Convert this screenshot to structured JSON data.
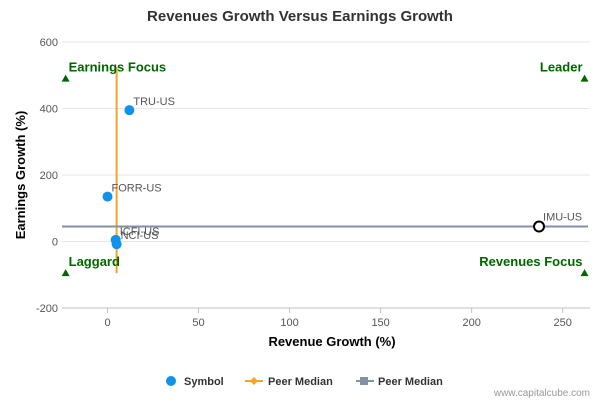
{
  "chart_data": {
    "type": "scatter",
    "title": "Revenues Growth Versus Earnings Growth",
    "xlabel": "Revenue Growth (%)",
    "ylabel": "Earnings Growth (%)",
    "xlim": [
      -25,
      265
    ],
    "ylim": [
      -200,
      600
    ],
    "x_ticks": [
      0,
      50,
      100,
      150,
      200,
      250
    ],
    "y_ticks": [
      -200,
      0,
      200,
      400,
      600
    ],
    "grid": "horizontal",
    "points": [
      {
        "label": "TRU-US",
        "x": 12,
        "y": 395
      },
      {
        "label": "FORR-US",
        "x": 0,
        "y": 135
      },
      {
        "label": "ICFI-US",
        "x": 4.5,
        "y": 5
      },
      {
        "label": "NCI-US",
        "x": 5,
        "y": -8
      }
    ],
    "highlight_point": {
      "label": "IMU-US",
      "x": 237,
      "y": 45
    },
    "peer_median_revenue": 5,
    "peer_median_earnings": 45,
    "quadrants": {
      "top_left": "Earnings Focus",
      "top_right": "Leader",
      "bottom_left": "Laggard",
      "bottom_right": "Revenues Focus"
    },
    "legend": [
      "Symbol",
      "Peer Median",
      "Peer Median"
    ],
    "legend_placement": "bottom",
    "colors": {
      "points": "#1192e8",
      "revenue_median": "#f7a32b",
      "earnings_median": "#8391a5",
      "quadrant": "#006600",
      "highlight": "#000000"
    }
  },
  "credit": "www.capitalcube.com"
}
